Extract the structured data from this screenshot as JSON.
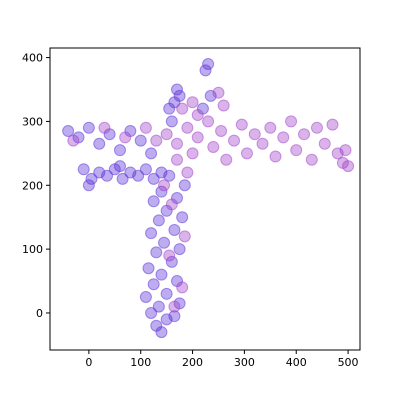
{
  "chart_data": {
    "type": "scatter",
    "xlim": [
      -75,
      523
    ],
    "ylim": [
      -58,
      415
    ],
    "xticks": [
      0,
      100,
      200,
      300,
      400,
      500
    ],
    "yticks": [
      0,
      100,
      200,
      300,
      400
    ],
    "series": [
      {
        "color": "#5a30d8",
        "x": [
          140,
          130,
          150,
          120,
          165,
          135,
          175,
          110,
          150,
          125,
          170,
          140,
          115,
          160,
          130,
          175,
          145,
          120,
          165,
          135,
          180,
          150,
          125,
          170,
          140,
          185,
          -10,
          5,
          20,
          35,
          50,
          65,
          80,
          95,
          110,
          125,
          140,
          155,
          0,
          60,
          160,
          165,
          170,
          155,
          175,
          225,
          230,
          235,
          220,
          -40,
          -20,
          0,
          20,
          40,
          60,
          80,
          100,
          120
        ],
        "y": [
          -30,
          -20,
          -10,
          0,
          -5,
          10,
          15,
          25,
          30,
          45,
          50,
          60,
          70,
          80,
          95,
          100,
          110,
          125,
          130,
          145,
          150,
          160,
          175,
          180,
          190,
          200,
          225,
          210,
          220,
          215,
          225,
          210,
          220,
          215,
          225,
          210,
          220,
          215,
          200,
          230,
          300,
          330,
          350,
          320,
          340,
          380,
          390,
          340,
          320,
          285,
          275,
          290,
          265,
          280,
          255,
          285,
          270,
          250
        ]
      },
      {
        "color": "#a040c8",
        "x": [
          150,
          170,
          190,
          200,
          210,
          230,
          240,
          255,
          265,
          280,
          295,
          305,
          320,
          335,
          350,
          360,
          375,
          390,
          400,
          415,
          430,
          440,
          455,
          470,
          480,
          490,
          495,
          500,
          200,
          210,
          250,
          260,
          180,
          165,
          180,
          155,
          185,
          160,
          145,
          190,
          170,
          -30,
          30,
          70,
          110,
          130
        ],
        "y": [
          280,
          265,
          290,
          250,
          275,
          300,
          260,
          285,
          240,
          270,
          295,
          250,
          280,
          265,
          290,
          245,
          275,
          300,
          255,
          280,
          240,
          290,
          265,
          295,
          250,
          235,
          255,
          230,
          330,
          310,
          345,
          325,
          320,
          10,
          40,
          90,
          120,
          170,
          200,
          220,
          240,
          270,
          290,
          275,
          290,
          270
        ]
      }
    ]
  }
}
